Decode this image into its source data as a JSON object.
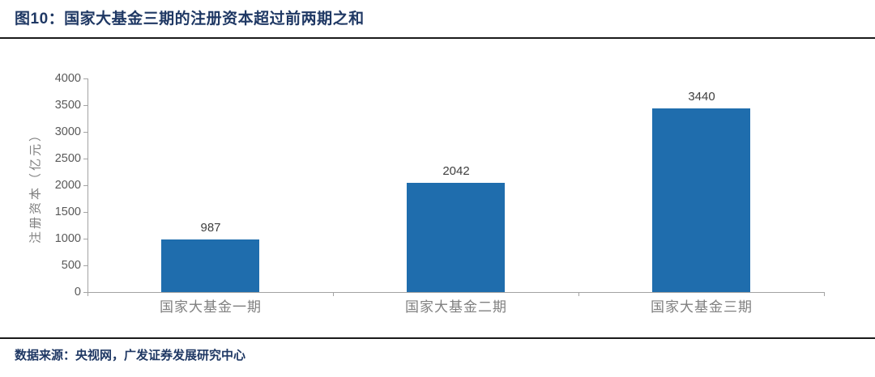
{
  "header": {
    "title": "图10：国家大基金三期的注册资本超过前两期之和"
  },
  "footer": {
    "source": "数据来源：央视网，广发证券发展研究中心"
  },
  "colors": {
    "title_navy": "#1F3864",
    "bar_blue": "#1F6DAD",
    "axis_gray": "#A3A3A3",
    "tick_label_gray": "#595959",
    "category_label_gray": "#7F7F7F",
    "data_label_gray": "#3F3F3F",
    "divider_black": "#1A1A1A"
  },
  "chart_data": {
    "type": "bar",
    "categories": [
      "国家大基金一期",
      "国家大基金二期",
      "国家大基金三期"
    ],
    "values": [
      987,
      2042,
      3440
    ],
    "data_labels": [
      "987",
      "2042",
      "3440"
    ],
    "title": "图10：国家大基金三期的注册资本超过前两期之和",
    "xlabel": "",
    "ylabel": "注册资本（亿元）",
    "ylim": [
      0,
      4000
    ],
    "yticks": [
      0,
      500,
      1000,
      1500,
      2000,
      2500,
      3000,
      3500,
      4000
    ],
    "grid": false,
    "legend": "none",
    "bar_color": "#1F6DAD"
  }
}
